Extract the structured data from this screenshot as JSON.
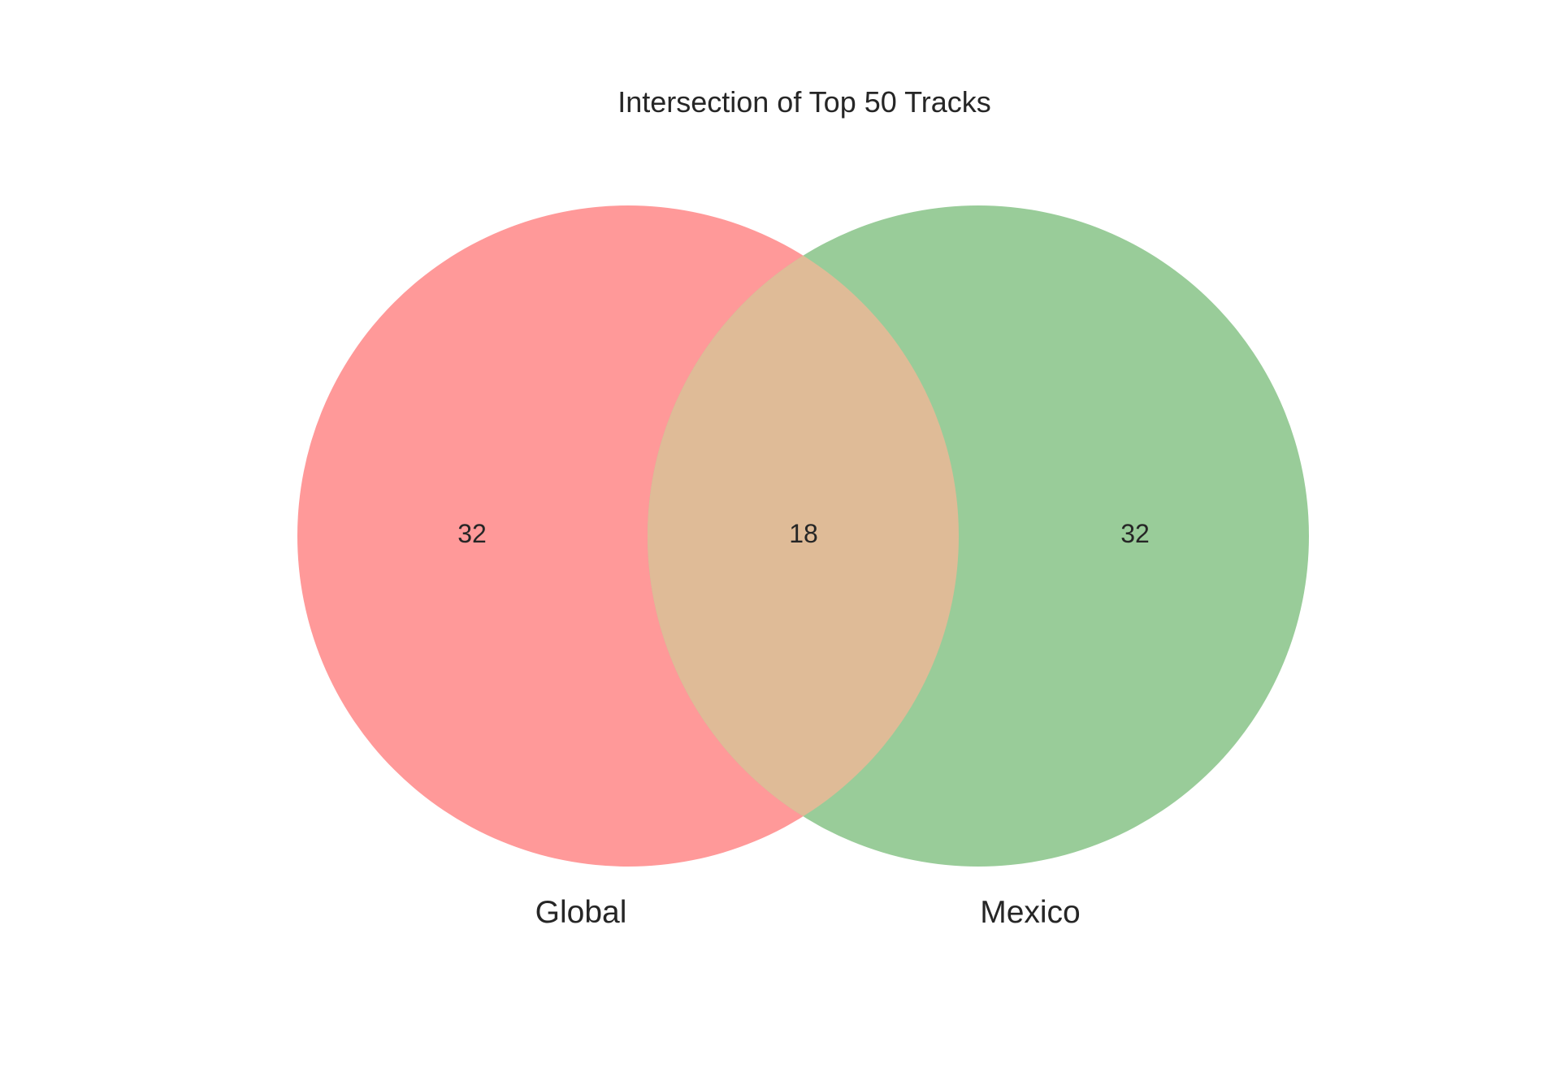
{
  "title": "Intersection of Top 50 Tracks",
  "sets": [
    {
      "name": "Global",
      "only_count": "32",
      "color": "#ff9999"
    },
    {
      "name": "Mexico",
      "only_count": "32",
      "color": "#99cc99"
    }
  ],
  "intersection": {
    "count": "18",
    "color": "#dfbb97"
  }
}
